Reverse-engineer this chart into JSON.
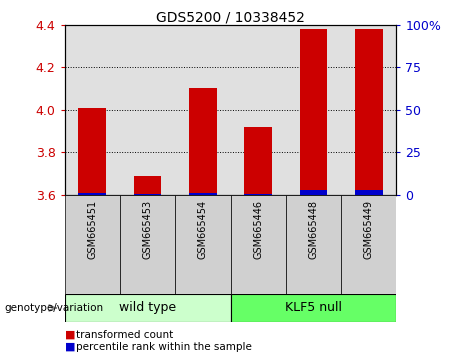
{
  "title": "GDS5200 / 10338452",
  "categories": [
    "GSM665451",
    "GSM665453",
    "GSM665454",
    "GSM665446",
    "GSM665448",
    "GSM665449"
  ],
  "red_values": [
    4.01,
    3.69,
    4.1,
    3.92,
    4.38,
    4.38
  ],
  "blue_values": [
    1.0,
    0.5,
    1.0,
    0.5,
    3.0,
    2.5
  ],
  "ymin": 3.6,
  "ymax": 4.4,
  "y2min": 0,
  "y2max": 100,
  "yticks": [
    3.6,
    3.8,
    4.0,
    4.2,
    4.4
  ],
  "y2ticks": [
    0,
    25,
    50,
    75,
    100
  ],
  "red_color": "#cc0000",
  "blue_color": "#0000cc",
  "bar_width": 0.5,
  "group1_label": "wild type",
  "group2_label": "KLF5 null",
  "group1_color": "#ccffcc",
  "group2_color": "#66ff66",
  "genotype_label": "genotype/variation",
  "legend_red": "transformed count",
  "legend_blue": "percentile rank within the sample",
  "left_tick_color": "#cc0000",
  "right_tick_color": "#0000cc",
  "plot_bg": "#e0e0e0",
  "ticklabel_bg": "#d0d0d0"
}
